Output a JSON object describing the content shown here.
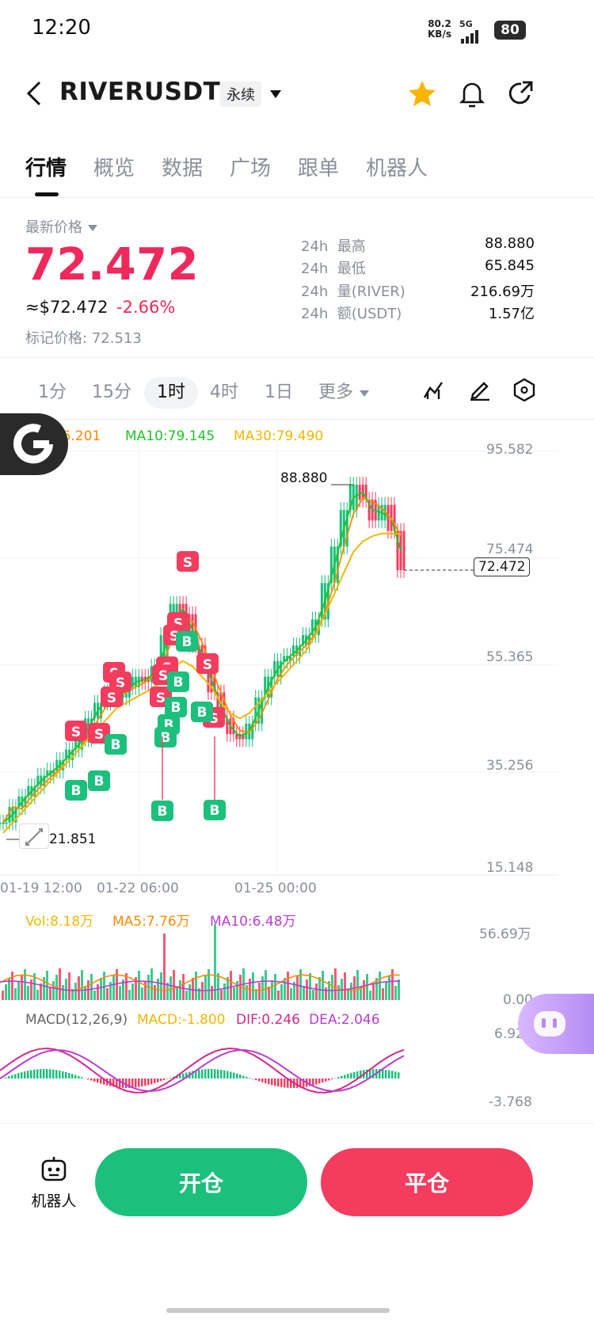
{
  "status": {
    "time": "12:20",
    "net_speed": "80.2",
    "net_unit": "KB/s",
    "signal": "5G",
    "battery": "80"
  },
  "header": {
    "symbol": "RIVERUSDT",
    "contract_type": "永续"
  },
  "tabs": [
    "行情",
    "概览",
    "数据",
    "广场",
    "跟单",
    "机器人"
  ],
  "price": {
    "label": "最新价格",
    "last": "72.472",
    "usd": "≈$72.472",
    "change": "-2.66%",
    "mark_label": "标记价格:",
    "mark": "72.513"
  },
  "stats": [
    {
      "period": "24h",
      "name": "最高",
      "value": "88.880"
    },
    {
      "period": "24h",
      "name": "最低",
      "value": "65.845"
    },
    {
      "period": "24h",
      "name": "量(RIVER)",
      "value": "216.69万"
    },
    {
      "period": "24h",
      "name": "额(USDT)",
      "value": "1.57亿"
    }
  ],
  "intervals": [
    "1分",
    "15分",
    "1时",
    "4时",
    "1日",
    "更多"
  ],
  "active_interval": "1时",
  "chart_data": {
    "type": "line",
    "title": "",
    "ma": [
      {
        "name": "MA5",
        "value": "76.201",
        "color": "#ff8a00"
      },
      {
        "name": "MA10",
        "value": "79.145",
        "color": "#22c32b"
      },
      {
        "name": "MA30",
        "value": "79.490",
        "color": "#f2b705"
      }
    ],
    "y_ticks": [
      "95.582",
      "75.474",
      "55.365",
      "35.256",
      "15.148"
    ],
    "ylim": [
      15.148,
      95.582
    ],
    "x_ticks": [
      "01-19 12:00",
      "01-22 06:00",
      "01-25 00:00"
    ],
    "high_label": "88.880",
    "low_label": "21.851",
    "current_price": "72.472",
    "price_path": [
      24,
      27,
      29,
      31,
      33,
      34,
      36,
      38,
      40,
      44,
      47,
      49,
      48,
      50,
      52,
      51,
      54,
      60,
      66,
      64,
      58,
      54,
      49,
      44,
      41,
      40,
      43,
      48,
      52,
      55,
      56,
      58,
      60,
      63,
      70,
      77,
      84,
      88.88,
      86,
      82,
      85,
      80,
      72.472
    ],
    "ma_path_slow": [
      22,
      24,
      26,
      28,
      30,
      32,
      34,
      36,
      38,
      40,
      42,
      44,
      46,
      47,
      48,
      49,
      50,
      52,
      54,
      55,
      54,
      52,
      50,
      47,
      45,
      44,
      45,
      47,
      49,
      51,
      53,
      55,
      57,
      60,
      64,
      68,
      72,
      76,
      78,
      79,
      79.5,
      79.5,
      79.49
    ],
    "volume": {
      "vol": "8.18万",
      "ma5": "7.76万",
      "ma10": "6.48万",
      "y_ticks": [
        "56.69万",
        "0.00"
      ]
    },
    "macd": {
      "params": "MACD(12,26,9)",
      "macd": "-1.800",
      "dif": "0.246",
      "dea": "2.046",
      "y_ticks": [
        "6.929",
        "-3.768"
      ]
    }
  },
  "bottom": {
    "robot_label": "机器人",
    "open_label": "开仓",
    "close_label": "平仓"
  }
}
